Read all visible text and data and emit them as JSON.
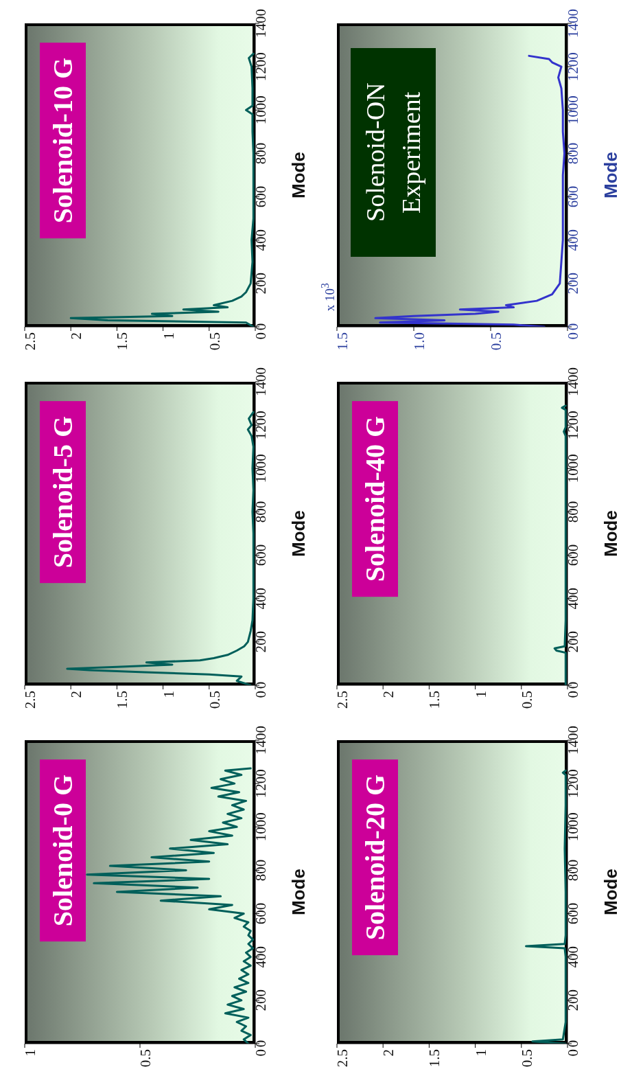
{
  "chart_data": [
    {
      "type": "line",
      "ylabel": "Mode",
      "annotations": [
        "Solenoid-0 G"
      ],
      "ylim": [
        0,
        1400
      ],
      "yticks": [
        0,
        200,
        400,
        600,
        800,
        1000,
        1200,
        1400
      ],
      "xlim": [
        1,
        0
      ],
      "xticks": [
        0,
        0.5,
        1
      ],
      "series": [
        {
          "color": "#005f5a",
          "x": [
            0.03,
            0.05,
            0.02,
            0.06,
            0.04,
            0.08,
            0.03,
            0.13,
            0.05,
            0.12,
            0.06,
            0.1,
            0.04,
            0.09,
            0.03,
            0.07,
            0.03,
            0.06,
            0.02,
            0.05,
            0.02,
            0.04,
            0.01,
            0.03,
            0.01,
            0.03,
            0.02,
            0.05,
            0.03,
            0.09,
            0.05,
            0.2,
            0.1,
            0.41,
            0.15,
            0.6,
            0.25,
            0.7,
            0.2,
            0.73,
            0.3,
            0.63,
            0.2,
            0.45,
            0.18,
            0.37,
            0.12,
            0.28,
            0.1,
            0.2,
            0.08,
            0.14,
            0.06,
            0.12,
            0.05,
            0.1,
            0.04,
            0.16,
            0.07,
            0.19,
            0.09,
            0.15,
            0.06,
            0.13,
            0.02
          ],
          "values": [
            0,
            20,
            40,
            60,
            80,
            100,
            120,
            140,
            160,
            180,
            200,
            220,
            240,
            260,
            280,
            300,
            320,
            340,
            360,
            380,
            400,
            420,
            440,
            460,
            480,
            500,
            520,
            540,
            560,
            580,
            600,
            620,
            640,
            660,
            680,
            700,
            720,
            740,
            760,
            780,
            800,
            820,
            840,
            860,
            880,
            900,
            920,
            940,
            960,
            980,
            1000,
            1020,
            1040,
            1060,
            1080,
            1100,
            1120,
            1140,
            1160,
            1180,
            1200,
            1220,
            1240,
            1260,
            1270
          ]
        }
      ]
    },
    {
      "type": "line",
      "ylabel": "Mode",
      "annotations": [
        "Solenoid-5 G"
      ],
      "ylim": [
        0,
        1400
      ],
      "yticks": [
        0,
        200,
        400,
        600,
        800,
        1000,
        1200,
        1400
      ],
      "xlim": [
        2.5,
        0
      ],
      "xticks": [
        0,
        0.5,
        1,
        1.5,
        2,
        2.5
      ],
      "series": [
        {
          "color": "#005f5a",
          "x": [
            0.05,
            0.2,
            0.15,
            0.5,
            1.2,
            1.8,
            2.04,
            1.5,
            0.9,
            1.18,
            0.6,
            0.45,
            0.3,
            0.2,
            0.12,
            0.08,
            0.05,
            0.03,
            0.02,
            0.02,
            0.02,
            0.02,
            0.03,
            0.02,
            0.03,
            0.02,
            0.04,
            0.08,
            0.04,
            0.07,
            0.02
          ],
          "values": [
            0,
            20,
            40,
            50,
            60,
            70,
            76,
            85,
            95,
            105,
            115,
            125,
            140,
            160,
            180,
            200,
            250,
            300,
            400,
            500,
            600,
            700,
            800,
            900,
            1000,
            1100,
            1150,
            1180,
            1200,
            1230,
            1260
          ]
        }
      ]
    },
    {
      "type": "line",
      "ylabel": "Mode",
      "annotations": [
        "Solenoid-10 G"
      ],
      "ylim": [
        0,
        1400
      ],
      "yticks": [
        0,
        200,
        400,
        600,
        800,
        1000,
        1200,
        1400
      ],
      "xlim": [
        2.5,
        0
      ],
      "xticks": [
        0,
        0.5,
        1,
        1.5,
        2,
        2.5
      ],
      "series": [
        {
          "color": "#005f5a",
          "x": [
            0.02,
            0.1,
            1.6,
            2,
            0.9,
            1.12,
            0.4,
            0.78,
            0.3,
            0.45,
            0.25,
            0.15,
            0.1,
            0.05,
            0.03,
            0.04,
            0.02,
            0.02,
            0.02,
            0.02,
            0.03,
            0.03,
            0.1,
            0.03,
            0.03,
            0.04,
            0.07,
            0.02
          ],
          "values": [
            0,
            20,
            30,
            40,
            50,
            60,
            70,
            80,
            90,
            100,
            120,
            140,
            160,
            200,
            300,
            400,
            500,
            600,
            700,
            800,
            900,
            980,
            1000,
            1020,
            1100,
            1200,
            1240,
            1260
          ]
        }
      ]
    },
    {
      "type": "line",
      "ylabel": "Mode",
      "annotations": [
        "Solenoid-20 G"
      ],
      "ylim": [
        0,
        1400
      ],
      "yticks": [
        0,
        200,
        400,
        600,
        800,
        1000,
        1200,
        1400
      ],
      "xlim": [
        2.5,
        0
      ],
      "xticks": [
        0,
        0.5,
        1,
        1.5,
        2,
        2.5
      ],
      "series": [
        {
          "color": "#005f5a",
          "x": [
            0.02,
            0.38,
            0.05,
            0.02,
            0.02,
            0.02,
            0.02,
            0.03,
            0.45,
            0.03,
            0.02,
            0.02,
            0.03,
            0.02,
            0.02,
            0.05,
            0.02
          ],
          "values": [
            0,
            10,
            20,
            100,
            200,
            300,
            400,
            440,
            450,
            460,
            500,
            700,
            900,
            1100,
            1240,
            1250,
            1260
          ]
        }
      ]
    },
    {
      "type": "line",
      "ylabel": "Mode",
      "annotations": [
        "Solenoid-40 G"
      ],
      "ylim": [
        0,
        1400
      ],
      "yticks": [
        0,
        200,
        400,
        600,
        800,
        1000,
        1200,
        1400
      ],
      "xlim": [
        2.5,
        0
      ],
      "xticks": [
        0,
        0.5,
        1,
        1.5,
        2,
        2.5
      ],
      "series": [
        {
          "color": "#005f5a",
          "x": [
            0.02,
            0.02,
            0.02,
            0.12,
            0.14,
            0.03,
            0.02,
            0.02,
            0.02,
            0.02,
            0.04,
            0.02,
            0.02,
            0.06,
            0.02
          ],
          "values": [
            0,
            100,
            150,
            160,
            170,
            180,
            300,
            600,
            900,
            1150,
            1170,
            1190,
            1270,
            1280,
            1290
          ]
        }
      ]
    },
    {
      "type": "line",
      "ylabel": "Mode",
      "annotations": [
        "Solenoid-ON Experiment",
        "x 10$^{3}$"
      ],
      "ylim": [
        0,
        1400
      ],
      "yticks": [
        0,
        200,
        400,
        600,
        800,
        1000,
        1200,
        1400
      ],
      "xlim": [
        1.5,
        0
      ],
      "xticks": [
        0,
        0.5,
        {
          "value": 1,
          "label": "1.0"
        },
        {
          "value": 1.5,
          "label": "1.5"
        }
      ],
      "series": [
        {
          "color": "#3333cc",
          "x": [
            0.15,
            0.35,
            1.22,
            0.8,
            1.25,
            1,
            0.6,
            0.45,
            0.7,
            0.35,
            0.4,
            0.2,
            0.1,
            0.05,
            0.04,
            0.03,
            0.03,
            0.03,
            0.03,
            0.02,
            0.03,
            0.03,
            0.04,
            0.06,
            0.04,
            0.1,
            0.12,
            0.25
          ],
          "values": [
            0,
            10,
            20,
            30,
            40,
            50,
            60,
            70,
            80,
            90,
            100,
            120,
            150,
            200,
            300,
            400,
            500,
            600,
            700,
            800,
            900,
            1000,
            1100,
            1150,
            1200,
            1220,
            1235,
            1250
          ]
        }
      ]
    }
  ]
}
